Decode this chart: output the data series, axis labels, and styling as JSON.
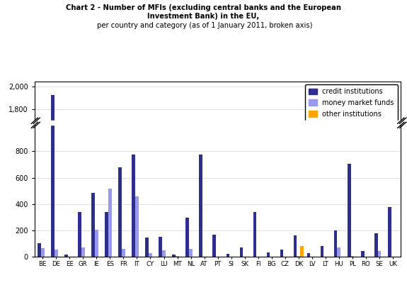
{
  "countries": [
    "BE",
    "DE",
    "EE",
    "GR",
    "IE",
    "ES",
    "FR",
    "IT",
    "CY",
    "LU",
    "MT",
    "NL",
    "AT",
    "PT",
    "SI",
    "SK",
    "FI",
    "BG",
    "CZ",
    "DK",
    "LV",
    "LT",
    "HU",
    "PL",
    "RO",
    "SE",
    "UK"
  ],
  "credit_institutions": [
    104,
    1929,
    14,
    340,
    486,
    337,
    680,
    776,
    147,
    148,
    18,
    294,
    775,
    166,
    24,
    70,
    341,
    30,
    56,
    163,
    28,
    79,
    197,
    704,
    42,
    175,
    375
  ],
  "money_market_funds": [
    63,
    55,
    2,
    68,
    207,
    515,
    60,
    456,
    27,
    49,
    6,
    60,
    0,
    1,
    0,
    1,
    0,
    0,
    1,
    3,
    0,
    1,
    68,
    3,
    0,
    44,
    2
  ],
  "other_institutions": [
    0,
    0,
    0,
    0,
    0,
    0,
    0,
    0,
    0,
    0,
    0,
    0,
    0,
    0,
    0,
    0,
    0,
    0,
    0,
    80,
    0,
    0,
    0,
    0,
    0,
    0,
    0
  ],
  "color_credit": "#2E2E8B",
  "color_mmf": "#9999EE",
  "color_other": "#FFA500",
  "break_lower_max": 1000,
  "break_upper_min": 1700,
  "lower_yticks": [
    0,
    200,
    400,
    600,
    800
  ],
  "upper_yticks": [
    1800,
    2000
  ],
  "upper_ylim_max": 2050,
  "legend_labels": [
    "credit institutions",
    "money market funds",
    "other institutions"
  ]
}
